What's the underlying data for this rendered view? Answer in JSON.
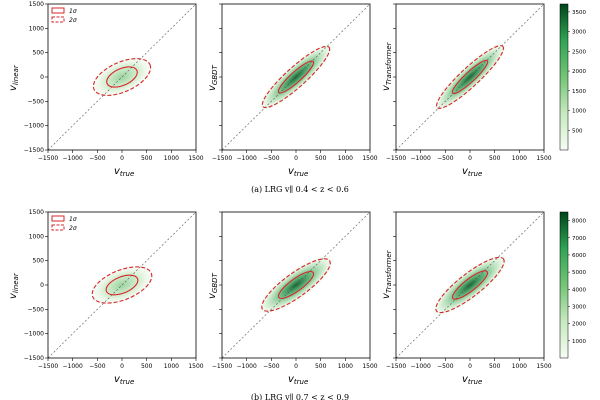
{
  "colors": {
    "ellipse": "#d62728",
    "diagonal": "#555555",
    "cmap_light": "#f2faf0",
    "cmap_dark": "#0b5e2c",
    "axis": "#000000"
  },
  "chart_data": [
    {
      "type": "heatmap",
      "caption": "(a) LRG v∥ 0.4 < z < 0.6",
      "x_ticks": [
        "−1500",
        "−1000",
        "−500",
        "0",
        "500",
        "1000",
        "1500"
      ],
      "y_ticks": [
        "1500",
        "1000",
        "500",
        "0",
        "−500",
        "−1000",
        "−1500"
      ],
      "xlim": [
        -1500,
        1500
      ],
      "ylim": [
        -1500,
        1500
      ],
      "legend": {
        "entries": [
          "1σ",
          "2σ"
        ],
        "placement": "top-left"
      },
      "colorbar": {
        "ticks": [
          "3500",
          "3000",
          "2500",
          "2000",
          "1500",
          "1000",
          "500"
        ],
        "range": [
          0,
          3700
        ]
      },
      "panels": [
        {
          "xlabel": "v_true",
          "xlabel_main": "v",
          "xlabel_sub": "true",
          "ylabel_main": "v",
          "ylabel_sub": "linear",
          "sigma1": {
            "angle": 24,
            "a": 330,
            "b": 170
          },
          "sigma2": {
            "angle": 24,
            "a": 620,
            "b": 300
          }
        },
        {
          "xlabel": "v_true",
          "xlabel_main": "v",
          "xlabel_sub": "true",
          "ylabel_main": "v",
          "ylabel_sub": "GBDT",
          "sigma1": {
            "angle": 42,
            "a": 470,
            "b": 105
          },
          "sigma2": {
            "angle": 42,
            "a": 900,
            "b": 200
          }
        },
        {
          "xlabel": "v_true",
          "xlabel_main": "v",
          "xlabel_sub": "true",
          "ylabel_main": "v",
          "ylabel_sub": "Transformer",
          "sigma1": {
            "angle": 43,
            "a": 480,
            "b": 100
          },
          "sigma2": {
            "angle": 43,
            "a": 910,
            "b": 190
          }
        }
      ]
    },
    {
      "type": "heatmap",
      "caption": "(b) LRG v∥ 0.7 < z < 0.9",
      "x_ticks": [
        "−1500",
        "−1000",
        "−500",
        "0",
        "500",
        "1000",
        "1500"
      ],
      "y_ticks": [
        "1500",
        "1000",
        "500",
        "0",
        "−500",
        "−1000",
        "−1500"
      ],
      "xlim": [
        -1500,
        1500
      ],
      "ylim": [
        -1500,
        1500
      ],
      "legend": {
        "entries": [
          "1σ",
          "2σ"
        ],
        "placement": "top-left"
      },
      "colorbar": {
        "ticks": [
          "8000",
          "7000",
          "6000",
          "5000",
          "4000",
          "3000",
          "2000",
          "1000"
        ],
        "range": [
          0,
          8500
        ]
      },
      "panels": [
        {
          "xlabel": "v_true",
          "xlabel_main": "v",
          "xlabel_sub": "true",
          "ylabel_main": "v",
          "ylabel_sub": "linear",
          "sigma1": {
            "angle": 22,
            "a": 340,
            "b": 165
          },
          "sigma2": {
            "angle": 22,
            "a": 640,
            "b": 300
          }
        },
        {
          "xlabel": "v_true",
          "xlabel_main": "v",
          "xlabel_sub": "true",
          "ylabel_main": "v",
          "ylabel_sub": "GBDT",
          "sigma1": {
            "angle": 36,
            "a": 430,
            "b": 125
          },
          "sigma2": {
            "angle": 36,
            "a": 840,
            "b": 240
          }
        },
        {
          "xlabel": "v_true",
          "xlabel_main": "v",
          "xlabel_sub": "true",
          "ylabel_main": "v",
          "ylabel_sub": "Transformer",
          "sigma1": {
            "angle": 38,
            "a": 440,
            "b": 120
          },
          "sigma2": {
            "angle": 38,
            "a": 860,
            "b": 230
          }
        }
      ]
    }
  ]
}
